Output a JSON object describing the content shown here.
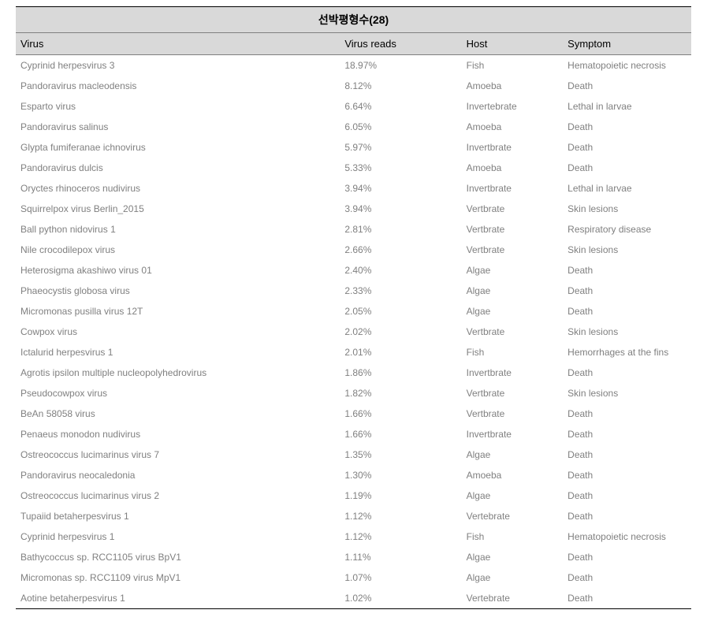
{
  "title": "선박평형수(28)",
  "columns": [
    "Virus",
    "Virus reads",
    "Host",
    "Symptom"
  ],
  "rows": [
    [
      "Cyprinid herpesvirus 3",
      "18.97%",
      "Fish",
      "Hematopoietic necrosis"
    ],
    [
      "Pandoravirus macleodensis",
      "8.12%",
      "Amoeba",
      "Death"
    ],
    [
      "Esparto virus",
      "6.64%",
      "Invertebrate",
      "Lethal in larvae"
    ],
    [
      "Pandoravirus salinus",
      "6.05%",
      "Amoeba",
      "Death"
    ],
    [
      "Glypta fumiferanae ichnovirus",
      "5.97%",
      "Invertbrate",
      "Death"
    ],
    [
      "Pandoravirus dulcis",
      "5.33%",
      "Amoeba",
      "Death"
    ],
    [
      "Oryctes rhinoceros nudivirus",
      "3.94%",
      "Invertbrate",
      "Lethal in larvae"
    ],
    [
      "Squirrelpox virus Berlin_2015",
      "3.94%",
      "Vertbrate",
      "Skin lesions"
    ],
    [
      "Ball python nidovirus 1",
      "2.81%",
      "Vertbrate",
      "Respiratory disease"
    ],
    [
      "Nile crocodilepox virus",
      "2.66%",
      "Vertbrate",
      "Skin lesions"
    ],
    [
      "Heterosigma akashiwo virus 01",
      "2.40%",
      "Algae",
      "Death"
    ],
    [
      "Phaeocystis globosa virus",
      "2.33%",
      "Algae",
      "Death"
    ],
    [
      "Micromonas pusilla virus 12T",
      "2.05%",
      "Algae",
      "Death"
    ],
    [
      "Cowpox virus",
      "2.02%",
      "Vertbrate",
      "Skin lesions"
    ],
    [
      "Ictalurid herpesvirus 1",
      "2.01%",
      "Fish",
      "Hemorrhages at the fins"
    ],
    [
      "Agrotis ipsilon multiple nucleopolyhedrovirus",
      "1.86%",
      "Invertbrate",
      "Death"
    ],
    [
      "Pseudocowpox virus",
      "1.82%",
      "Vertbrate",
      "Skin lesions"
    ],
    [
      "BeAn 58058 virus",
      "1.66%",
      "Vertbrate",
      "Death"
    ],
    [
      "Penaeus monodon nudivirus",
      "1.66%",
      "Invertbrate",
      "Death"
    ],
    [
      "Ostreococcus lucimarinus virus 7",
      "1.35%",
      "Algae",
      "Death"
    ],
    [
      "Pandoravirus neocaledonia",
      "1.30%",
      "Amoeba",
      "Death"
    ],
    [
      "Ostreococcus lucimarinus virus 2",
      "1.19%",
      "Algae",
      "Death"
    ],
    [
      "Tupaiid betaherpesvirus 1",
      "1.12%",
      "Vertebrate",
      "Death"
    ],
    [
      "Cyprinid herpesvirus 1",
      "1.12%",
      "Fish",
      "Hematopoietic necrosis"
    ],
    [
      "Bathycoccus sp. RCC1105 virus BpV1",
      "1.11%",
      "Algae",
      "Death"
    ],
    [
      "Micromonas sp. RCC1109 virus MpV1",
      "1.07%",
      "Algae",
      "Death"
    ],
    [
      "Aotine betaherpesvirus 1",
      "1.02%",
      "Vertebrate",
      "Death"
    ]
  ],
  "style": {
    "header_bg": "#d9d9d9",
    "header_text": "#000000",
    "body_text": "#808080",
    "border_color": "#000000",
    "title_fontsize": 14,
    "header_fontsize": 13,
    "body_fontsize": 12,
    "col_widths_pct": [
      48,
      18,
      15,
      19
    ]
  }
}
